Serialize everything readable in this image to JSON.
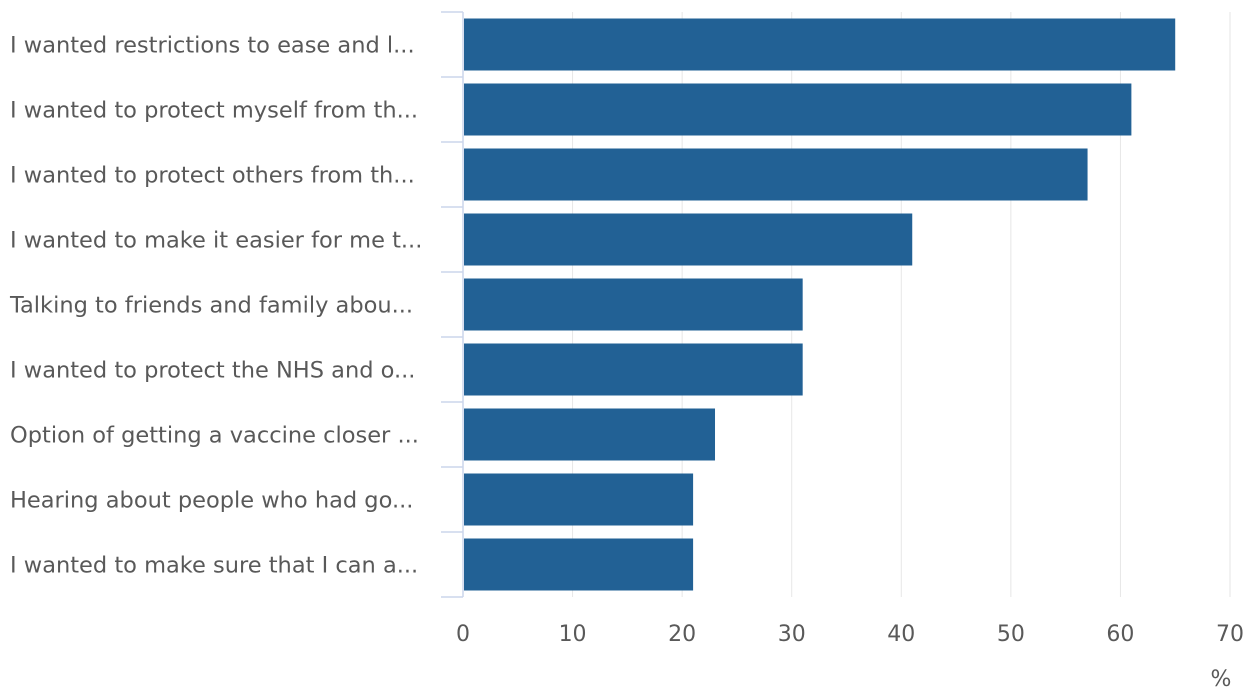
{
  "chart_data": {
    "type": "bar",
    "orientation": "horizontal",
    "categories": [
      "I wanted restrictions to ease and l...",
      "I wanted to protect myself from th...",
      "I wanted to protect others from th...",
      "I wanted to make it easier for me t...",
      "Talking to friends and family abou...",
      "I wanted to protect the NHS and o...",
      "Option of getting a vaccine closer ...",
      "Hearing about people who had go...",
      "I wanted to make sure that I can a..."
    ],
    "values": [
      65,
      61,
      57,
      41,
      31,
      31,
      23,
      21,
      21
    ],
    "title": "",
    "xlabel": "",
    "ylabel": "",
    "xlim": [
      0,
      70
    ],
    "xticks": [
      0,
      10,
      20,
      30,
      40,
      50,
      60,
      70
    ],
    "unit_label": "%",
    "grid": "vertical",
    "legend": "none",
    "colors": {
      "bar": "#226195",
      "grid": "#e6e6e6",
      "axis": "#ccd6eb",
      "text": "#595959"
    }
  }
}
